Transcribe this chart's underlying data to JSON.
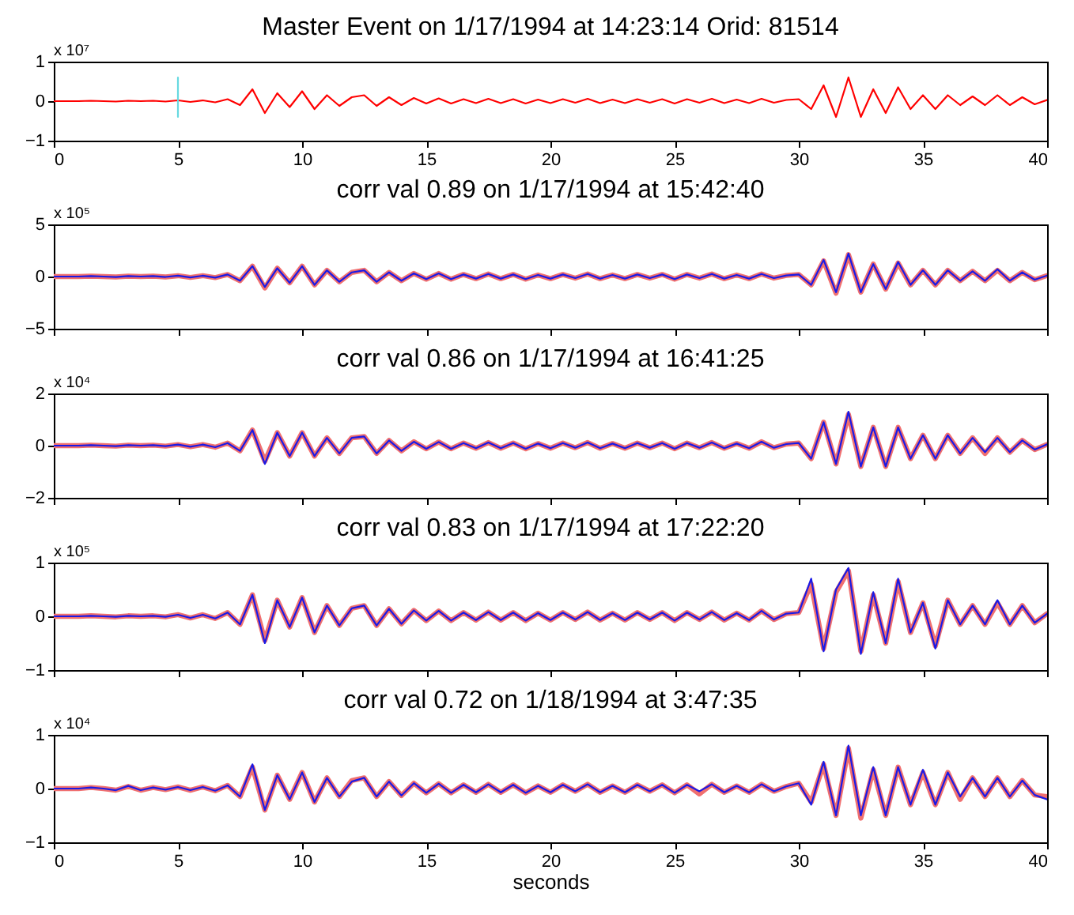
{
  "chart_data": [
    {
      "type": "line",
      "title": "Master Event on 1/17/1994 at 14:23:14 Orid: 81514",
      "annotations": [
        "x 10⁷"
      ],
      "xlim": [
        0,
        40
      ],
      "xticks": [
        0,
        5,
        10,
        15,
        20,
        25,
        30,
        35,
        40
      ],
      "ylim": [
        -1,
        1
      ],
      "yticks": [
        -1,
        0,
        1
      ],
      "x": [
        0,
        0.5,
        1,
        1.5,
        2,
        2.5,
        3,
        3.5,
        4,
        4.5,
        5,
        5.5,
        6,
        6.5,
        7,
        7.5,
        8,
        8.5,
        9,
        9.5,
        10,
        10.5,
        11,
        11.5,
        12,
        12.5,
        13,
        13.5,
        14,
        14.5,
        15,
        15.5,
        16,
        16.5,
        17,
        17.5,
        18,
        18.5,
        19,
        19.5,
        20,
        20.5,
        21,
        21.5,
        22,
        22.5,
        23,
        23.5,
        24,
        24.5,
        25,
        25.5,
        26,
        26.5,
        27,
        27.5,
        28,
        28.5,
        29,
        29.5,
        30,
        30.5,
        31,
        31.5,
        32,
        32.5,
        33,
        33.5,
        34,
        34.5,
        35,
        35.5,
        36,
        36.5,
        37,
        37.5,
        38,
        38.5,
        39,
        39.5,
        40
      ],
      "series": [
        {
          "color": "#ff0000",
          "values": [
            0,
            0,
            0,
            0.01,
            0,
            -0.01,
            0.01,
            0,
            0.01,
            -0.01,
            0.02,
            -0.02,
            0.02,
            -0.03,
            0.05,
            -0.1,
            0.3,
            -0.3,
            0.2,
            -0.15,
            0.25,
            -0.2,
            0.15,
            -0.12,
            0.1,
            0.15,
            -0.12,
            0.1,
            -0.1,
            0.08,
            -0.06,
            0.07,
            -0.06,
            0.05,
            -0.05,
            0.06,
            -0.05,
            0.05,
            -0.06,
            0.04,
            -0.05,
            0.05,
            -0.04,
            0.06,
            -0.05,
            0.04,
            -0.05,
            0.05,
            -0.04,
            0.05,
            -0.06,
            0.05,
            -0.04,
            0.06,
            -0.05,
            0.04,
            -0.05,
            0.06,
            -0.04,
            0.03,
            0.05,
            -0.2,
            0.4,
            -0.4,
            0.6,
            -0.4,
            0.3,
            -0.3,
            0.35,
            -0.2,
            0.15,
            -0.2,
            0.15,
            -0.1,
            0.12,
            -0.1,
            0.15,
            -0.1,
            0.1,
            -0.08,
            0.03
          ]
        },
        {
          "type": "line",
          "color": "#66d9e0",
          "x": [
            5,
            5
          ],
          "values": [
            -0.4,
            0.6
          ]
        }
      ]
    },
    {
      "type": "line",
      "title": "corr val 0.89 on 1/17/1994 at 15:42:40",
      "annotations": [
        "x 10⁵"
      ],
      "xlim": [
        0,
        40
      ],
      "xticks": [
        0,
        5,
        10,
        15,
        20,
        25,
        30,
        35,
        40
      ],
      "ylim": [
        -5,
        5
      ],
      "yticks": [
        -5,
        0,
        5
      ],
      "tick_labels": "y",
      "x": [
        0,
        0.5,
        1,
        1.5,
        2,
        2.5,
        3,
        3.5,
        4,
        4.5,
        5,
        5.5,
        6,
        6.5,
        7,
        7.5,
        8,
        8.5,
        9,
        9.5,
        10,
        10.5,
        11,
        11.5,
        12,
        12.5,
        13,
        13.5,
        14,
        14.5,
        15,
        15.5,
        16,
        16.5,
        17,
        17.5,
        18,
        18.5,
        19,
        19.5,
        20,
        20.5,
        21,
        21.5,
        22,
        22.5,
        23,
        23.5,
        24,
        24.5,
        25,
        25.5,
        26,
        26.5,
        27,
        27.5,
        28,
        28.5,
        29,
        29.5,
        30,
        30.5,
        31,
        31.5,
        32,
        32.5,
        33,
        33.5,
        34,
        34.5,
        35,
        35.5,
        36,
        36.5,
        37,
        37.5,
        38,
        38.5,
        39,
        39.5,
        40
      ],
      "series": [
        {
          "color": "#f07070",
          "values": [
            0,
            0,
            0,
            0.04,
            0,
            -0.04,
            0.04,
            0,
            0.04,
            -0.04,
            0.08,
            -0.08,
            0.08,
            -0.1,
            0.2,
            -0.4,
            1.0,
            -1.1,
            0.8,
            -0.6,
            1.0,
            -0.8,
            0.6,
            -0.5,
            0.4,
            0.6,
            -0.5,
            0.4,
            -0.4,
            0.3,
            -0.25,
            0.3,
            -0.25,
            0.2,
            -0.2,
            0.25,
            -0.2,
            0.2,
            -0.25,
            0.15,
            -0.2,
            0.2,
            -0.15,
            0.25,
            -0.2,
            0.15,
            -0.2,
            0.2,
            -0.15,
            0.2,
            -0.25,
            0.2,
            -0.15,
            0.25,
            -0.2,
            0.15,
            -0.2,
            0.25,
            -0.15,
            0.1,
            0.2,
            -0.8,
            1.5,
            -1.6,
            2.1,
            -1.5,
            1.2,
            -1.2,
            1.3,
            -0.8,
            0.6,
            -0.8,
            0.6,
            -0.4,
            0.5,
            -0.4,
            0.6,
            -0.4,
            0.4,
            -0.3,
            0.1
          ]
        },
        {
          "color": "#1a1ae6",
          "values": [
            0,
            0,
            0,
            0.04,
            0,
            -0.04,
            0.04,
            0,
            0.04,
            -0.04,
            0.08,
            -0.08,
            0.08,
            -0.1,
            0.2,
            -0.4,
            1.0,
            -1.0,
            0.8,
            -0.6,
            1.0,
            -0.8,
            0.6,
            -0.5,
            0.4,
            0.6,
            -0.5,
            0.4,
            -0.4,
            0.3,
            -0.25,
            0.3,
            -0.25,
            0.2,
            -0.2,
            0.25,
            -0.2,
            0.2,
            -0.25,
            0.15,
            -0.2,
            0.2,
            -0.15,
            0.25,
            -0.2,
            0.15,
            -0.2,
            0.2,
            -0.15,
            0.2,
            -0.25,
            0.2,
            -0.15,
            0.25,
            -0.2,
            0.15,
            -0.2,
            0.25,
            -0.15,
            0.1,
            0.2,
            -0.8,
            1.6,
            -1.5,
            2.2,
            -1.5,
            1.2,
            -1.2,
            1.4,
            -0.8,
            0.6,
            -0.8,
            0.6,
            -0.4,
            0.5,
            -0.4,
            0.7,
            -0.4,
            0.4,
            -0.3,
            0.1
          ]
        }
      ]
    },
    {
      "type": "line",
      "title": "corr val 0.86 on 1/17/1994 at 16:41:25",
      "annotations": [
        "x 10⁴"
      ],
      "xlim": [
        0,
        40
      ],
      "xticks": [
        0,
        5,
        10,
        15,
        20,
        25,
        30,
        35,
        40
      ],
      "ylim": [
        -2,
        2
      ],
      "yticks": [
        -2,
        0,
        2
      ],
      "tick_labels": "y",
      "x": [
        0,
        0.5,
        1,
        1.5,
        2,
        2.5,
        3,
        3.5,
        4,
        4.5,
        5,
        5.5,
        6,
        6.5,
        7,
        7.5,
        8,
        8.5,
        9,
        9.5,
        10,
        10.5,
        11,
        11.5,
        12,
        12.5,
        13,
        13.5,
        14,
        14.5,
        15,
        15.5,
        16,
        16.5,
        17,
        17.5,
        18,
        18.5,
        19,
        19.5,
        20,
        20.5,
        21,
        21.5,
        22,
        22.5,
        23,
        23.5,
        24,
        24.5,
        25,
        25.5,
        26,
        26.5,
        27,
        27.5,
        28,
        28.5,
        29,
        29.5,
        30,
        30.5,
        31,
        31.5,
        32,
        32.5,
        33,
        33.5,
        34,
        34.5,
        35,
        35.5,
        36,
        36.5,
        37,
        37.5,
        38,
        38.5,
        39,
        39.5,
        40
      ],
      "series": [
        {
          "color": "#f07070",
          "values": [
            0,
            0,
            0,
            0.02,
            0,
            -0.02,
            0.02,
            0,
            0.02,
            -0.02,
            0.04,
            -0.04,
            0.04,
            -0.06,
            0.1,
            -0.2,
            0.6,
            -0.6,
            0.5,
            -0.4,
            0.5,
            -0.4,
            0.3,
            -0.3,
            0.3,
            0.35,
            -0.3,
            0.2,
            -0.2,
            0.15,
            -0.12,
            0.14,
            -0.12,
            0.1,
            -0.1,
            0.12,
            -0.1,
            0.1,
            -0.12,
            0.08,
            -0.1,
            0.1,
            -0.08,
            0.12,
            -0.1,
            0.08,
            -0.1,
            0.1,
            -0.08,
            0.1,
            -0.12,
            0.1,
            -0.08,
            0.12,
            -0.1,
            0.08,
            -0.1,
            0.15,
            -0.08,
            0.06,
            0.1,
            -0.5,
            0.9,
            -0.7,
            1.2,
            -0.8,
            0.7,
            -0.8,
            0.7,
            -0.5,
            0.4,
            -0.5,
            0.4,
            -0.3,
            0.3,
            -0.3,
            0.3,
            -0.25,
            0.2,
            -0.15,
            0.05
          ]
        },
        {
          "color": "#1a1ae6",
          "values": [
            0,
            0,
            0,
            0.02,
            0,
            -0.02,
            0.02,
            0,
            0.02,
            -0.02,
            0.04,
            -0.04,
            0.04,
            -0.06,
            0.1,
            -0.2,
            0.6,
            -0.7,
            0.5,
            -0.4,
            0.5,
            -0.4,
            0.3,
            -0.3,
            0.3,
            0.35,
            -0.3,
            0.2,
            -0.2,
            0.15,
            -0.12,
            0.14,
            -0.12,
            0.1,
            -0.1,
            0.12,
            -0.1,
            0.1,
            -0.12,
            0.08,
            -0.1,
            0.1,
            -0.08,
            0.12,
            -0.1,
            0.08,
            -0.1,
            0.1,
            -0.08,
            0.1,
            -0.12,
            0.1,
            -0.08,
            0.12,
            -0.1,
            0.08,
            -0.1,
            0.15,
            -0.08,
            0.06,
            0.1,
            -0.5,
            0.9,
            -0.7,
            1.3,
            -0.8,
            0.7,
            -0.8,
            0.7,
            -0.5,
            0.4,
            -0.5,
            0.4,
            -0.3,
            0.3,
            -0.25,
            0.3,
            -0.25,
            0.2,
            -0.15,
            0.05
          ]
        }
      ]
    },
    {
      "type": "line",
      "title": "corr val 0.83 on 1/17/1994 at 17:22:20",
      "annotations": [
        "x 10⁵"
      ],
      "xlim": [
        0,
        40
      ],
      "xticks": [
        0,
        5,
        10,
        15,
        20,
        25,
        30,
        35,
        40
      ],
      "ylim": [
        -1,
        1
      ],
      "yticks": [
        -1,
        0,
        1
      ],
      "tick_labels": "y",
      "x": [
        0,
        0.5,
        1,
        1.5,
        2,
        2.5,
        3,
        3.5,
        4,
        4.5,
        5,
        5.5,
        6,
        6.5,
        7,
        7.5,
        8,
        8.5,
        9,
        9.5,
        10,
        10.5,
        11,
        11.5,
        12,
        12.5,
        13,
        13.5,
        14,
        14.5,
        15,
        15.5,
        16,
        16.5,
        17,
        17.5,
        18,
        18.5,
        19,
        19.5,
        20,
        20.5,
        21,
        21.5,
        22,
        22.5,
        23,
        23.5,
        24,
        24.5,
        25,
        25.5,
        26,
        26.5,
        27,
        27.5,
        28,
        28.5,
        29,
        29.5,
        30,
        30.5,
        31,
        31.5,
        32,
        32.5,
        33,
        33.5,
        34,
        34.5,
        35,
        35.5,
        36,
        36.5,
        37,
        37.5,
        38,
        38.5,
        39,
        39.5,
        40
      ],
      "series": [
        {
          "color": "#f07070",
          "values": [
            0,
            0,
            0,
            0.01,
            0,
            -0.01,
            0.01,
            0,
            0.01,
            -0.01,
            0.03,
            -0.03,
            0.03,
            -0.04,
            0.07,
            -0.15,
            0.4,
            -0.45,
            0.3,
            -0.2,
            0.35,
            -0.3,
            0.2,
            -0.17,
            0.15,
            0.2,
            -0.17,
            0.14,
            -0.14,
            0.11,
            -0.08,
            0.1,
            -0.08,
            0.07,
            -0.07,
            0.08,
            -0.07,
            0.07,
            -0.08,
            0.06,
            -0.07,
            0.07,
            -0.06,
            0.08,
            -0.07,
            0.06,
            -0.07,
            0.07,
            -0.06,
            0.07,
            -0.08,
            0.07,
            -0.06,
            0.08,
            -0.07,
            0.06,
            -0.07,
            0.1,
            -0.06,
            0.05,
            0.07,
            0.6,
            -0.6,
            0.45,
            0.85,
            -0.65,
            0.4,
            -0.5,
            0.65,
            -0.3,
            0.25,
            -0.55,
            0.3,
            -0.15,
            0.2,
            -0.15,
            0.25,
            -0.15,
            0.2,
            -0.12,
            0.05
          ]
        },
        {
          "color": "#1a1ae6",
          "values": [
            0,
            0,
            0,
            0.01,
            0,
            -0.01,
            0.01,
            0,
            0.01,
            -0.01,
            0.03,
            -0.03,
            0.03,
            -0.04,
            0.07,
            -0.15,
            0.4,
            -0.5,
            0.3,
            -0.2,
            0.35,
            -0.3,
            0.2,
            -0.17,
            0.15,
            0.2,
            -0.17,
            0.14,
            -0.14,
            0.11,
            -0.08,
            0.1,
            -0.08,
            0.07,
            -0.07,
            0.08,
            -0.07,
            0.07,
            -0.08,
            0.06,
            -0.07,
            0.07,
            -0.06,
            0.08,
            -0.07,
            0.06,
            -0.07,
            0.07,
            -0.06,
            0.07,
            -0.08,
            0.07,
            -0.06,
            0.08,
            -0.07,
            0.06,
            -0.07,
            0.1,
            -0.06,
            0.05,
            0.07,
            0.7,
            -0.65,
            0.5,
            0.9,
            -0.7,
            0.45,
            -0.5,
            0.7,
            -0.3,
            0.25,
            -0.6,
            0.3,
            -0.15,
            0.2,
            -0.15,
            0.3,
            -0.15,
            0.2,
            -0.12,
            0.05
          ]
        }
      ]
    },
    {
      "type": "line",
      "title": "corr val 0.72 on 1/18/1994 at 3:47:35",
      "annotations": [
        "x 10⁴"
      ],
      "xlabel": "seconds",
      "xlim": [
        0,
        40
      ],
      "xticks": [
        0,
        5,
        10,
        15,
        20,
        25,
        30,
        35,
        40
      ],
      "ylim": [
        -1,
        1
      ],
      "yticks": [
        -1,
        0,
        1
      ],
      "x": [
        0,
        0.5,
        1,
        1.5,
        2,
        2.5,
        3,
        3.5,
        4,
        4.5,
        5,
        5.5,
        6,
        6.5,
        7,
        7.5,
        8,
        8.5,
        9,
        9.5,
        10,
        10.5,
        11,
        11.5,
        12,
        12.5,
        13,
        13.5,
        14,
        14.5,
        15,
        15.5,
        16,
        16.5,
        17,
        17.5,
        18,
        18.5,
        19,
        19.5,
        20,
        20.5,
        21,
        21.5,
        22,
        22.5,
        23,
        23.5,
        24,
        24.5,
        25,
        25.5,
        26,
        26.5,
        27,
        27.5,
        28,
        28.5,
        29,
        29.5,
        30,
        30.5,
        31,
        31.5,
        32,
        32.5,
        33,
        33.5,
        34,
        34.5,
        35,
        35.5,
        36,
        36.5,
        37,
        37.5,
        38,
        38.5,
        39,
        39.5,
        40
      ],
      "series": [
        {
          "color": "#f07070",
          "values": [
            0,
            0,
            0,
            0.02,
            0,
            -0.03,
            0.04,
            -0.03,
            0.02,
            -0.02,
            0.03,
            -0.03,
            0.03,
            -0.04,
            0.06,
            -0.15,
            0.4,
            -0.4,
            0.25,
            -0.2,
            0.3,
            -0.25,
            0.2,
            -0.15,
            0.15,
            0.2,
            -0.15,
            0.13,
            -0.13,
            0.1,
            -0.08,
            0.09,
            -0.08,
            0.07,
            -0.07,
            0.08,
            -0.07,
            0.07,
            -0.08,
            0.05,
            -0.07,
            0.07,
            -0.05,
            0.08,
            -0.07,
            0.05,
            -0.07,
            0.07,
            -0.05,
            0.07,
            -0.08,
            0.07,
            -0.1,
            0.08,
            -0.07,
            0.05,
            -0.07,
            0.08,
            -0.05,
            0.04,
            0.1,
            -0.25,
            0.45,
            -0.5,
            0.75,
            -0.55,
            0.35,
            -0.5,
            0.4,
            -0.3,
            0.3,
            -0.3,
            0.3,
            -0.2,
            0.2,
            -0.15,
            0.2,
            -0.15,
            0.15,
            -0.12,
            -0.15
          ]
        },
        {
          "color": "#1a1ae6",
          "values": [
            0,
            0,
            0,
            0.02,
            0,
            -0.03,
            0.05,
            -0.03,
            0.02,
            -0.02,
            0.03,
            -0.03,
            0.03,
            -0.04,
            0.06,
            -0.15,
            0.45,
            -0.4,
            0.25,
            -0.2,
            0.3,
            -0.25,
            0.2,
            -0.15,
            0.13,
            0.2,
            -0.15,
            0.13,
            -0.13,
            0.1,
            -0.08,
            0.09,
            -0.08,
            0.07,
            -0.07,
            0.08,
            -0.07,
            0.07,
            -0.08,
            0.05,
            -0.07,
            0.07,
            -0.05,
            0.08,
            -0.07,
            0.05,
            -0.07,
            0.07,
            -0.05,
            0.07,
            -0.08,
            0.07,
            -0.05,
            0.08,
            -0.07,
            0.05,
            -0.07,
            0.08,
            -0.05,
            0.04,
            0.1,
            -0.3,
            0.5,
            -0.5,
            0.8,
            -0.5,
            0.4,
            -0.5,
            0.4,
            -0.3,
            0.35,
            -0.3,
            0.3,
            -0.15,
            0.2,
            -0.15,
            0.2,
            -0.15,
            0.15,
            -0.12,
            -0.2
          ]
        }
      ]
    }
  ]
}
